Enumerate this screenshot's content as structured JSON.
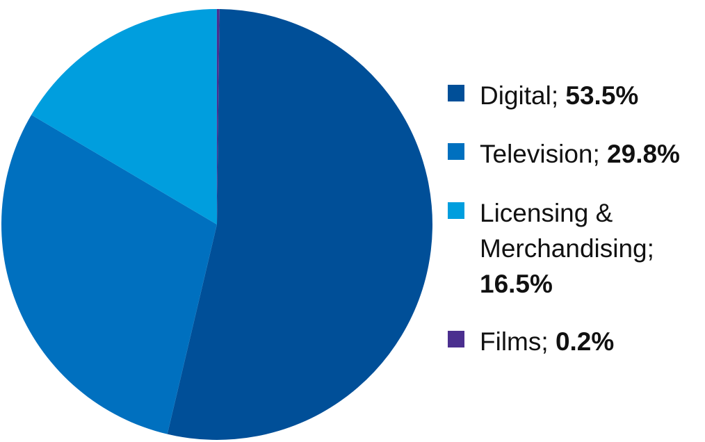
{
  "chart_data": {
    "type": "pie",
    "slices": [
      {
        "name": "Digital",
        "value": 53.5,
        "label": "53.5%",
        "color": "#004f98"
      },
      {
        "name": "Television",
        "value": 29.8,
        "label": "29.8%",
        "color": "#0070bf"
      },
      {
        "name": "Licensing & Merchandising",
        "value": 16.5,
        "label": "16.5%",
        "color": "#009ede"
      },
      {
        "name": "Films",
        "value": 0.2,
        "label": "0.2%",
        "color": "#4b2f8f"
      }
    ],
    "legend_position": "right"
  },
  "legend": {
    "items": [
      {
        "name": "Digital",
        "sep": "; ",
        "value": "53.5%"
      },
      {
        "name": "Television",
        "sep": "; ",
        "value": "29.8%"
      },
      {
        "name": "Licensing & Merchandising",
        "sep": ";",
        "value": "16.5%"
      },
      {
        "name": "Films",
        "sep": "; ",
        "value": "0.2%"
      }
    ]
  }
}
